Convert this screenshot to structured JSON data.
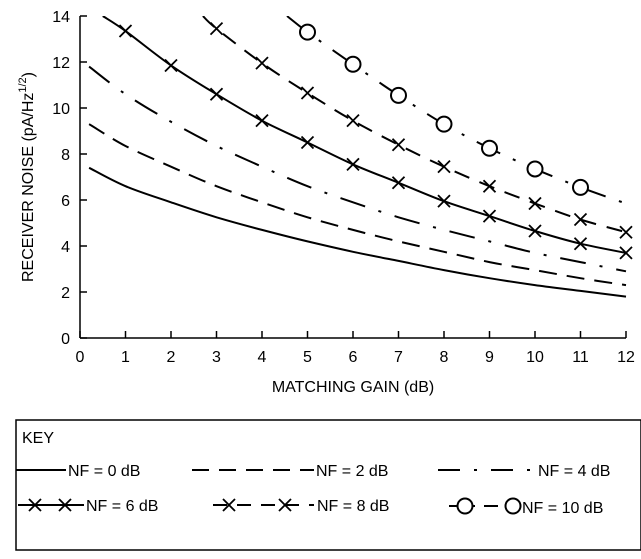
{
  "chart_data": {
    "type": "line",
    "xlabel": "MATCHING GAIN (dB)",
    "ylabel_main": "RECEIVER NOISE (pA/Hz",
    "ylabel_sup": "1/2",
    "ylabel_close": ")",
    "xlim": [
      0,
      12
    ],
    "ylim": [
      0,
      14
    ],
    "x_ticks": [
      0,
      1,
      2,
      3,
      4,
      5,
      6,
      7,
      8,
      9,
      10,
      11,
      12
    ],
    "y_ticks": [
      0,
      2,
      4,
      6,
      8,
      10,
      12,
      14
    ],
    "grid": false,
    "legend_position": "bottom",
    "series": [
      {
        "name": "NF = 0 dB",
        "style": "solid",
        "marker": "none",
        "x": [
          0.2,
          1,
          2,
          3,
          4,
          5,
          6,
          7,
          8,
          9,
          10,
          11,
          12
        ],
        "y": [
          7.4,
          6.6,
          5.9,
          5.25,
          4.7,
          4.2,
          3.75,
          3.35,
          2.95,
          2.6,
          2.3,
          2.05,
          1.8
        ]
      },
      {
        "name": "NF = 2 dB",
        "style": "dashed",
        "marker": "none",
        "x": [
          0.2,
          1,
          2,
          3,
          4,
          5,
          6,
          7,
          8,
          9,
          10,
          11,
          12
        ],
        "y": [
          9.3,
          8.35,
          7.45,
          6.6,
          5.9,
          5.25,
          4.7,
          4.2,
          3.75,
          3.3,
          2.95,
          2.6,
          2.3
        ]
      },
      {
        "name": "NF = 4 dB",
        "style": "dash-dot",
        "marker": "none",
        "x": [
          0.2,
          1,
          2,
          3,
          4,
          5,
          6,
          7,
          8,
          9,
          10,
          11,
          12
        ],
        "y": [
          11.8,
          10.6,
          9.4,
          8.35,
          7.45,
          6.6,
          5.9,
          5.25,
          4.7,
          4.2,
          3.7,
          3.3,
          2.9
        ]
      },
      {
        "name": "NF = 6 dB",
        "style": "solid",
        "marker": "x",
        "x": [
          0.5,
          1,
          2,
          3,
          4,
          5,
          6,
          7,
          8,
          9,
          10,
          11,
          12
        ],
        "y": [
          14.0,
          13.35,
          11.85,
          10.6,
          9.45,
          8.5,
          7.55,
          6.75,
          5.95,
          5.3,
          4.65,
          4.1,
          3.7
        ]
      },
      {
        "name": "NF = 8 dB",
        "style": "long-dash",
        "marker": "x",
        "x": [
          2.7,
          3,
          4,
          5,
          6,
          7,
          8,
          9,
          10,
          11,
          12
        ],
        "y": [
          14.0,
          13.45,
          11.95,
          10.65,
          9.45,
          8.4,
          7.45,
          6.6,
          5.85,
          5.15,
          4.6
        ]
      },
      {
        "name": "NF = 10 dB",
        "style": "dash-dot",
        "marker": "circle",
        "x": [
          4.55,
          5,
          6,
          7,
          8,
          9,
          10,
          11,
          12
        ],
        "y": [
          14.0,
          13.3,
          11.9,
          10.55,
          9.3,
          8.25,
          7.35,
          6.55,
          5.85
        ]
      }
    ],
    "marker_x_values": {
      "NF = 6 dB": [
        1,
        2,
        3,
        4,
        5,
        6,
        7,
        8,
        9,
        10,
        11,
        12
      ],
      "NF = 8 dB": [
        3,
        4,
        5,
        6,
        7,
        8,
        9,
        10,
        11,
        12
      ],
      "NF = 10 dB": [
        5,
        6,
        7,
        8,
        9,
        10,
        11
      ]
    },
    "key": {
      "title": "KEY",
      "entries": [
        "NF = 0 dB",
        "NF = 2 dB",
        "NF = 4 dB",
        "NF = 6 dB",
        "NF = 8 dB",
        "NF = 10 dB"
      ]
    }
  }
}
